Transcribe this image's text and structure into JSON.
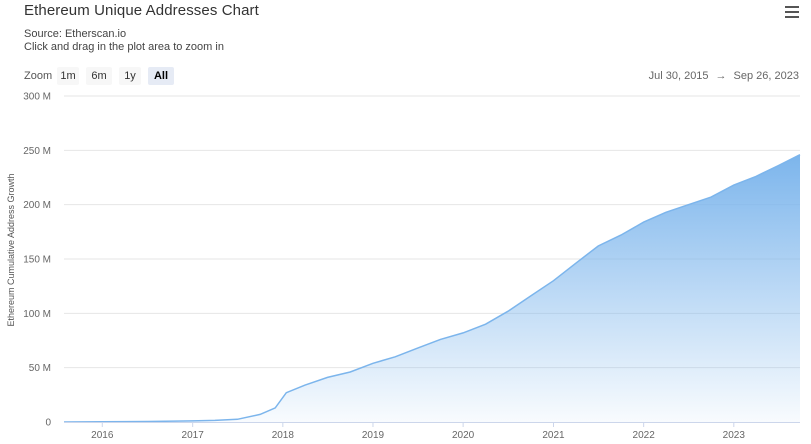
{
  "header": {
    "title": "Ethereum Unique Addresses Chart",
    "source": "Source: Etherscan.io",
    "hint": "Click and drag in the plot area to zoom in",
    "menu_icon": "hamburger-menu-icon"
  },
  "zoom": {
    "label": "Zoom",
    "buttons": [
      "1m",
      "6m",
      "1y",
      "All"
    ],
    "active": "All"
  },
  "range": {
    "from": "Jul 30, 2015",
    "arrow": "→",
    "to": "Sep 26, 2023"
  },
  "chart_data": {
    "type": "area",
    "title": "Ethereum Unique Addresses Chart",
    "ylabel": "Ethereum Cumulative Address Growth",
    "xlabel": "",
    "xlim": [
      "2015-07-30",
      "2023-09-26"
    ],
    "ylim": [
      0,
      300
    ],
    "y_unit": "M",
    "yticks": [
      0,
      50,
      100,
      150,
      200,
      250,
      300
    ],
    "ytick_labels": [
      "0",
      "50 M",
      "100 M",
      "150 M",
      "200 M",
      "250 M",
      "300 M"
    ],
    "xtick_labels": [
      "2016",
      "2017",
      "2018",
      "2019",
      "2020",
      "2021",
      "2022",
      "2023"
    ],
    "xtick_dates": [
      "2016-01-01",
      "2017-01-01",
      "2018-01-01",
      "2019-01-01",
      "2020-01-01",
      "2021-01-01",
      "2022-01-01",
      "2023-01-01"
    ],
    "grid": true,
    "legend": "none",
    "color": "#7cb5ec",
    "series": [
      {
        "x": [
          "2015-07-30",
          "2016-01-01",
          "2016-07-01",
          "2017-01-01",
          "2017-04-01",
          "2017-07-01",
          "2017-10-01",
          "2017-12-01",
          "2018-01-15",
          "2018-04-01",
          "2018-07-01",
          "2018-10-01",
          "2019-01-01",
          "2019-04-01",
          "2019-07-01",
          "2019-10-01",
          "2020-01-01",
          "2020-04-01",
          "2020-07-01",
          "2020-10-01",
          "2021-01-01",
          "2021-04-01",
          "2021-07-01",
          "2021-10-01",
          "2022-01-01",
          "2022-04-01",
          "2022-07-01",
          "2022-10-01",
          "2023-01-01",
          "2023-04-01",
          "2023-07-01",
          "2023-09-26"
        ],
        "y": [
          0,
          0.2,
          0.5,
          1,
          1.5,
          2.5,
          7,
          13,
          27,
          34,
          41,
          46,
          54,
          60,
          68,
          76,
          82,
          90,
          102,
          116,
          130,
          146,
          162,
          172,
          184,
          193,
          200,
          207,
          218,
          226,
          236,
          246
        ]
      }
    ]
  }
}
